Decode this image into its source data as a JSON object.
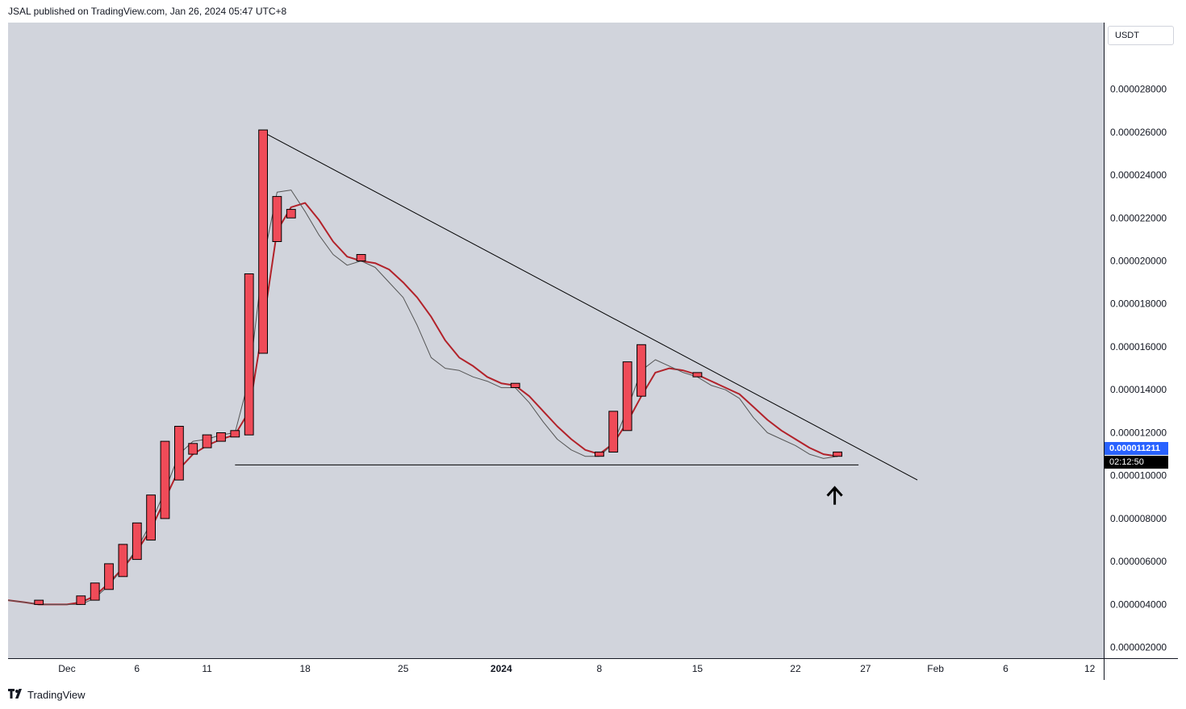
{
  "header": {
    "publisher_text": "JSAL published on TradingView.com, Jan 26, 2024 05:47 UTC+8"
  },
  "footer": {
    "brand": "TradingView",
    "logo_icon": "tradingview-logo-icon"
  },
  "price_scale": {
    "currency": "USDT",
    "last_price": "0.000011211",
    "countdown": "02:12:50"
  },
  "colors": {
    "background": "#d1d4dc",
    "candle": "#ef4b58",
    "ma_red": "#b2222a",
    "ma_gray": "#555555",
    "trendline": "#000000",
    "price_tag": "#2962ff"
  },
  "chart_data": {
    "type": "candlestick",
    "title": "",
    "xlabel": "",
    "ylabel": "",
    "ylim": [
      1.5e-06,
      3.11e-05
    ],
    "y_ticks": [
      "0.000002000",
      "0.000004000",
      "0.000006000",
      "0.000008000",
      "0.000010000",
      "0.000012000",
      "0.000014000",
      "0.000016000",
      "0.000018000",
      "0.000020000",
      "0.000022000",
      "0.000024000",
      "0.000026000",
      "0.000028000"
    ],
    "x_ticks": [
      {
        "label": "Dec",
        "day": 1
      },
      {
        "label": "6",
        "day": 6
      },
      {
        "label": "11",
        "day": 11
      },
      {
        "label": "18",
        "day": 18
      },
      {
        "label": "25",
        "day": 25
      },
      {
        "label": "2024",
        "day": 32,
        "bold": true
      },
      {
        "label": "8",
        "day": 39
      },
      {
        "label": "15",
        "day": 46
      },
      {
        "label": "22",
        "day": 53
      },
      {
        "label": "27",
        "day": 58
      },
      {
        "label": "Feb",
        "day": 63
      },
      {
        "label": "6",
        "day": 68
      },
      {
        "label": "12",
        "day": 74
      }
    ],
    "x_range_days": [
      -3.2,
      75.0
    ],
    "candles": [
      {
        "day": -1,
        "open": 4.2e-06,
        "close": 4e-06
      },
      {
        "day": 2,
        "open": 4.4e-06,
        "close": 4e-06
      },
      {
        "day": 3,
        "open": 5e-06,
        "close": 4.2e-06
      },
      {
        "day": 4,
        "open": 5.9e-06,
        "close": 4.7e-06
      },
      {
        "day": 5,
        "open": 6.8e-06,
        "close": 5.3e-06
      },
      {
        "day": 6,
        "open": 7.8e-06,
        "close": 6.1e-06
      },
      {
        "day": 7,
        "open": 9.1e-06,
        "close": 7e-06
      },
      {
        "day": 8,
        "open": 1.16e-05,
        "close": 8e-06
      },
      {
        "day": 9,
        "open": 1.23e-05,
        "close": 9.8e-06
      },
      {
        "day": 10,
        "open": 1.15e-05,
        "close": 1.1e-05
      },
      {
        "day": 11,
        "open": 1.19e-05,
        "close": 1.13e-05
      },
      {
        "day": 12,
        "open": 1.2e-05,
        "close": 1.16e-05
      },
      {
        "day": 13,
        "open": 1.21e-05,
        "close": 1.18e-05
      },
      {
        "day": 14,
        "open": 1.94e-05,
        "close": 1.19e-05
      },
      {
        "day": 15,
        "open": 2.61e-05,
        "close": 1.57e-05
      },
      {
        "day": 16,
        "open": 2.3e-05,
        "close": 2.09e-05
      },
      {
        "day": 17,
        "open": 2.24e-05,
        "close": 2.2e-05
      },
      {
        "day": 22,
        "open": 2.03e-05,
        "close": 2e-05
      },
      {
        "day": 33,
        "open": 1.43e-05,
        "close": 1.41e-05
      },
      {
        "day": 39,
        "open": 1.11e-05,
        "close": 1.09e-05
      },
      {
        "day": 40,
        "open": 1.3e-05,
        "close": 1.11e-05
      },
      {
        "day": 41,
        "open": 1.53e-05,
        "close": 1.21e-05
      },
      {
        "day": 42,
        "open": 1.61e-05,
        "close": 1.37e-05
      },
      {
        "day": 46,
        "open": 1.48e-05,
        "close": 1.46e-05
      },
      {
        "day": 56,
        "open": 1.11e-05,
        "close": 1.09e-05
      }
    ],
    "series": [
      {
        "x": [
          -3.2,
          -2,
          -1,
          0,
          1,
          2,
          3,
          4,
          5,
          6,
          7,
          8,
          9,
          10,
          11,
          12,
          13,
          14,
          15,
          16,
          17,
          18,
          19,
          20,
          21,
          22,
          23,
          24,
          25,
          26,
          27,
          28,
          29,
          30,
          31,
          32,
          33,
          34,
          35,
          36,
          37,
          38,
          39,
          40,
          41,
          42,
          43,
          44,
          45,
          46,
          47,
          48,
          49,
          50,
          51,
          52,
          53,
          54,
          55,
          56
        ],
        "values": [
          4.2e-06,
          4.1e-06,
          4e-06,
          4e-06,
          4e-06,
          4.1e-06,
          4.4e-06,
          5e-06,
          5.7e-06,
          6.5e-06,
          7.5e-06,
          8.9e-06,
          1.03e-05,
          1.1e-05,
          1.14e-05,
          1.17e-05,
          1.19e-05,
          1.3e-05,
          1.7e-05,
          2.14e-05,
          2.25e-05,
          2.27e-05,
          2.19e-05,
          2.09e-05,
          2.02e-05,
          2e-05,
          1.99e-05,
          1.96e-05,
          1.9e-05,
          1.83e-05,
          1.74e-05,
          1.63e-05,
          1.55e-05,
          1.51e-05,
          1.46e-05,
          1.43e-05,
          1.42e-05,
          1.37e-05,
          1.3e-05,
          1.23e-05,
          1.17e-05,
          1.12e-05,
          1.1e-05,
          1.15e-05,
          1.25e-05,
          1.37e-05,
          1.48e-05,
          1.5e-05,
          1.49e-05,
          1.47e-05,
          1.44e-05,
          1.41e-05,
          1.38e-05,
          1.32e-05,
          1.26e-05,
          1.21e-05,
          1.17e-05,
          1.13e-05,
          1.1e-05,
          1.09e-05
        ]
      },
      {
        "x": [
          -3.2,
          -2,
          -1,
          0,
          1,
          2,
          3,
          4,
          5,
          6,
          7,
          8,
          9,
          10,
          11,
          12,
          13,
          14,
          15,
          16,
          17,
          18,
          19,
          20,
          21,
          22,
          23,
          24,
          25,
          26,
          27,
          28,
          29,
          30,
          31,
          32,
          33,
          34,
          35,
          36,
          37,
          38,
          39,
          40,
          41,
          42,
          43,
          44,
          45,
          46,
          47,
          48,
          49,
          50,
          51,
          52,
          53,
          54,
          55,
          56
        ],
        "values": [
          4.2e-06,
          4.1e-06,
          4e-06,
          4e-06,
          4e-06,
          4e-06,
          4.3e-06,
          4.9e-06,
          5.7e-06,
          6.6e-06,
          7.8e-06,
          9.3e-06,
          1.1e-05,
          1.16e-05,
          1.17e-05,
          1.19e-05,
          1.2e-05,
          1.45e-05,
          2e-05,
          2.32e-05,
          2.33e-05,
          2.23e-05,
          2.12e-05,
          2.03e-05,
          1.98e-05,
          2e-05,
          1.97e-05,
          1.9e-05,
          1.83e-05,
          1.7e-05,
          1.55e-05,
          1.5e-05,
          1.49e-05,
          1.46e-05,
          1.44e-05,
          1.41e-05,
          1.41e-05,
          1.34e-05,
          1.25e-05,
          1.17e-05,
          1.12e-05,
          1.09e-05,
          1.09e-05,
          1.15e-05,
          1.31e-05,
          1.49e-05,
          1.54e-05,
          1.51e-05,
          1.48e-05,
          1.46e-05,
          1.42e-05,
          1.4e-05,
          1.36e-05,
          1.27e-05,
          1.2e-05,
          1.17e-05,
          1.14e-05,
          1.1e-05,
          1.08e-05,
          1.09e-05
        ]
      }
    ],
    "trendlines": [
      {
        "x1": 15,
        "y1": 2.6e-05,
        "x2": 61.7,
        "y2": 9.8e-06
      },
      {
        "x1": 13,
        "y1": 1.05e-05,
        "x2": 57.5,
        "y2": 1.05e-05
      }
    ],
    "annotation": {
      "type": "arrow-up",
      "day": 55.8,
      "price": 9.1e-06
    }
  }
}
